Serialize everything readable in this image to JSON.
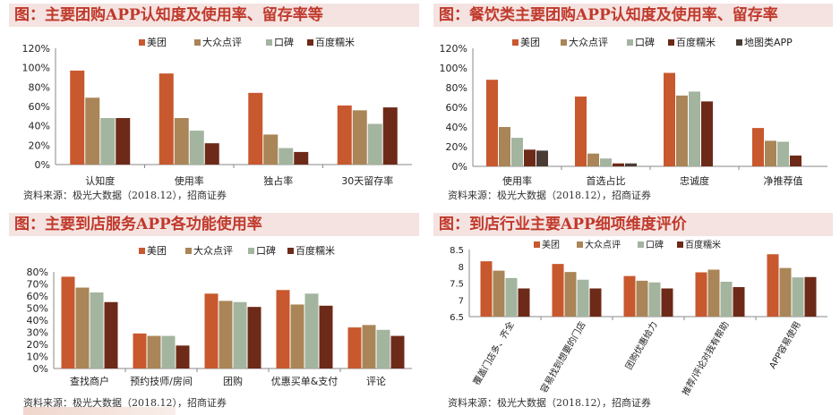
{
  "source_text": "资料来源：极光大数据（2018.12），招商证券",
  "colors": {
    "美团": "#c8582e",
    "大众点评": "#a98557",
    "口碑": "#a3b49f",
    "百度糯米": "#6d2a18",
    "地图类APP": "#4a3c35"
  },
  "charts": [
    {
      "title": "图：主要团购APP认知度及使用率、留存率等",
      "chart_data": {
        "type": "bar",
        "categories": [
          "认知度",
          "使用率",
          "独占率",
          "30天留存率"
        ],
        "series": [
          {
            "name": "美团",
            "values": [
              97,
              94,
              74,
              61
            ]
          },
          {
            "name": "大众点评",
            "values": [
              69,
              48,
              31,
              56
            ]
          },
          {
            "name": "口碑",
            "values": [
              48,
              35,
              17,
              42
            ]
          },
          {
            "name": "百度糯米",
            "values": [
              48,
              22,
              13,
              59
            ]
          }
        ],
        "yticks": [
          "0%",
          "20%",
          "40%",
          "60%",
          "80%",
          "100%",
          "120%"
        ],
        "ylim": [
          0,
          120
        ],
        "legend": "top-right"
      }
    },
    {
      "title": "图：餐饮类主要团购APP认知度及使用率、留存率",
      "chart_data": {
        "type": "bar",
        "categories": [
          "使用率",
          "首选占比",
          "忠诚度",
          "净推荐值"
        ],
        "series": [
          {
            "name": "美团",
            "values": [
              88,
              71,
              95,
              39
            ]
          },
          {
            "name": "大众点评",
            "values": [
              40,
              13,
              72,
              26
            ]
          },
          {
            "name": "口碑",
            "values": [
              29,
              8,
              76,
              25
            ]
          },
          {
            "name": "百度糯米",
            "values": [
              17,
              3,
              66,
              11
            ]
          },
          {
            "name": "地图类APP",
            "values": [
              16,
              3,
              0,
              0
            ]
          }
        ],
        "yticks": [
          "0%",
          "20%",
          "40%",
          "60%",
          "80%",
          "100%",
          "120%"
        ],
        "ylim": [
          0,
          120
        ],
        "legend": "top-right"
      }
    },
    {
      "title": "图：主要到店服务APP各功能使用率",
      "chart_data": {
        "type": "bar",
        "categories": [
          "查找商户",
          "预约技师/房间",
          "团购",
          "优惠买单&支付",
          "评论"
        ],
        "series": [
          {
            "name": "美团",
            "values": [
              76,
              29,
              62,
              65,
              34
            ]
          },
          {
            "name": "大众点评",
            "values": [
              67,
              27,
              56,
              53,
              36
            ]
          },
          {
            "name": "口碑",
            "values": [
              63,
              27,
              55,
              62,
              32
            ]
          },
          {
            "name": "百度糯米",
            "values": [
              55,
              19,
              51,
              52,
              27
            ]
          }
        ],
        "yticks": [
          "0%",
          "10%",
          "20%",
          "30%",
          "40%",
          "50%",
          "60%",
          "70%",
          "80%"
        ],
        "ylim": [
          0,
          80
        ],
        "legend": "top"
      }
    },
    {
      "title": "图：到店行业主要APP细项维度评价",
      "chart_data": {
        "type": "bar",
        "categories": [
          "覆盖门店多、齐全",
          "容易找到想要的门店",
          "团购优惠给力",
          "推荐/评论对我有帮助",
          "APP容易使用"
        ],
        "series": [
          {
            "name": "美团",
            "values": [
              8.15,
              8.07,
              7.71,
              7.82,
              8.36
            ]
          },
          {
            "name": "大众点评",
            "values": [
              7.87,
              7.83,
              7.57,
              7.9,
              7.95
            ]
          },
          {
            "name": "口碑",
            "values": [
              7.65,
              7.6,
              7.52,
              7.54,
              7.67
            ]
          },
          {
            "name": "百度糯米",
            "values": [
              7.34,
              7.34,
              7.34,
              7.38,
              7.68
            ]
          }
        ],
        "yticks": [
          "6.5",
          "7",
          "7.5",
          "8",
          "8.5"
        ],
        "ylim": [
          6.5,
          8.5
        ],
        "legend": "top",
        "rotated_labels": true
      }
    }
  ]
}
